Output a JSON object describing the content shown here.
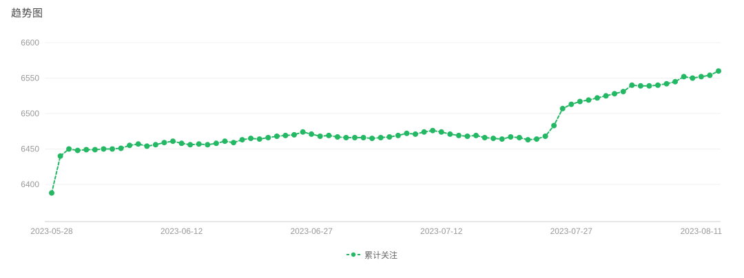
{
  "page": {
    "title": "趋势图"
  },
  "legend": {
    "label": "累计关注"
  },
  "colors": {
    "series": "#25b864",
    "grid": "#f0f0f0",
    "axis_line": "#cccccc",
    "axis_text": "#999999",
    "title_text": "#4a4a4a"
  },
  "chart_data": {
    "type": "line",
    "title": "趋势图",
    "xlabel": "",
    "ylabel": "",
    "grid": true,
    "legend_position": "bottom",
    "line_style": "dashed",
    "marker": "circle",
    "y_ticks": [
      6400,
      6450,
      6500,
      6550,
      6600
    ],
    "ylim": [
      6348,
      6600
    ],
    "x_tick_labels": [
      "2023-05-28",
      "2023-06-12",
      "2023-06-27",
      "2023-07-12",
      "2023-07-27",
      "2023-08-11"
    ],
    "x_tick_indices": [
      0,
      15,
      30,
      45,
      60,
      75
    ],
    "x": [
      "2023-05-28",
      "2023-05-29",
      "2023-05-30",
      "2023-05-31",
      "2023-06-01",
      "2023-06-02",
      "2023-06-03",
      "2023-06-04",
      "2023-06-05",
      "2023-06-06",
      "2023-06-07",
      "2023-06-08",
      "2023-06-09",
      "2023-06-10",
      "2023-06-11",
      "2023-06-12",
      "2023-06-13",
      "2023-06-14",
      "2023-06-15",
      "2023-06-16",
      "2023-06-17",
      "2023-06-18",
      "2023-06-19",
      "2023-06-20",
      "2023-06-21",
      "2023-06-22",
      "2023-06-23",
      "2023-06-24",
      "2023-06-25",
      "2023-06-26",
      "2023-06-27",
      "2023-06-28",
      "2023-06-29",
      "2023-06-30",
      "2023-07-01",
      "2023-07-02",
      "2023-07-03",
      "2023-07-04",
      "2023-07-05",
      "2023-07-06",
      "2023-07-07",
      "2023-07-08",
      "2023-07-09",
      "2023-07-10",
      "2023-07-11",
      "2023-07-12",
      "2023-07-13",
      "2023-07-14",
      "2023-07-15",
      "2023-07-16",
      "2023-07-17",
      "2023-07-18",
      "2023-07-19",
      "2023-07-20",
      "2023-07-21",
      "2023-07-22",
      "2023-07-23",
      "2023-07-24",
      "2023-07-25",
      "2023-07-26",
      "2023-07-27",
      "2023-07-28",
      "2023-07-29",
      "2023-07-30",
      "2023-07-31",
      "2023-08-01",
      "2023-08-02",
      "2023-08-03",
      "2023-08-04",
      "2023-08-05",
      "2023-08-06",
      "2023-08-07",
      "2023-08-08",
      "2023-08-09",
      "2023-08-10",
      "2023-08-11",
      "2023-08-12",
      "2023-08-13"
    ],
    "series": [
      {
        "name": "累计关注",
        "color": "#25b864",
        "values": [
          6388,
          6440,
          6450,
          6448,
          6449,
          6449,
          6450,
          6450,
          6451,
          6455,
          6457,
          6454,
          6456,
          6459,
          6461,
          6458,
          6456,
          6457,
          6456,
          6458,
          6461,
          6459,
          6463,
          6465,
          6464,
          6466,
          6468,
          6469,
          6470,
          6474,
          6471,
          6468,
          6469,
          6467,
          6466,
          6466,
          6466,
          6465,
          6466,
          6467,
          6469,
          6472,
          6471,
          6474,
          6476,
          6474,
          6471,
          6469,
          6468,
          6469,
          6466,
          6465,
          6464,
          6467,
          6466,
          6463,
          6464,
          6468,
          6483,
          6507,
          6513,
          6517,
          6519,
          6522,
          6525,
          6528,
          6531,
          6540,
          6539,
          6539,
          6540,
          6542,
          6545,
          6552,
          6550,
          6552,
          6554,
          6560
        ]
      }
    ]
  }
}
